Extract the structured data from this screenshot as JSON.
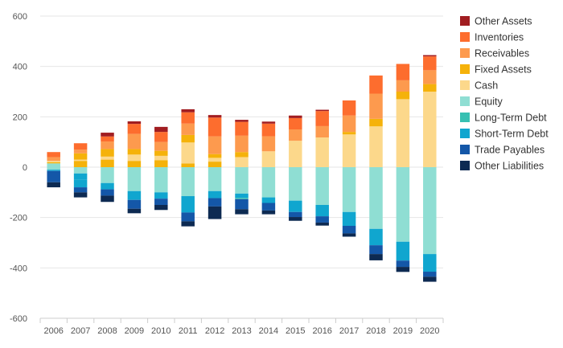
{
  "chart_data": {
    "type": "bar",
    "stacked": true,
    "categories": [
      "2006",
      "2007",
      "2008",
      "2009",
      "2010",
      "2011",
      "2012",
      "2013",
      "2014",
      "2015",
      "2016",
      "2017",
      "2018",
      "2019",
      "2020"
    ],
    "ylim": [
      -600,
      600
    ],
    "yticks": [
      600,
      400,
      200,
      0,
      -200,
      -400,
      -600
    ],
    "grid": true,
    "legend_position": "right",
    "positive_series": [
      {
        "name": "Equity",
        "color": "#8fded3",
        "values": [
          15,
          0,
          0,
          0,
          0,
          0,
          0,
          0,
          0,
          0,
          0,
          0,
          0,
          0,
          0
        ]
      },
      {
        "name": "Fixed Assets",
        "color": "#f5b20a",
        "values": [
          5,
          25,
          30,
          25,
          28,
          15,
          22,
          0,
          0,
          0,
          0,
          0,
          0,
          0,
          0
        ]
      },
      {
        "name": "Cash",
        "color": "#fcd88b",
        "values": [
          5,
          5,
          12,
          25,
          17,
          83,
          15,
          40,
          63,
          105,
          118,
          130,
          162,
          270,
          300
        ]
      },
      {
        "name": "Fixed Assets",
        "color": "#f5b20a",
        "values": [
          0,
          25,
          30,
          22,
          20,
          30,
          15,
          20,
          0,
          0,
          0,
          10,
          30,
          30,
          30
        ]
      },
      {
        "name": "Receivables",
        "color": "#fd9a4e",
        "values": [
          15,
          15,
          30,
          60,
          35,
          45,
          70,
          65,
          60,
          45,
          45,
          65,
          100,
          45,
          55
        ]
      },
      {
        "name": "Inventories",
        "color": "#fd6d2e",
        "values": [
          20,
          25,
          20,
          40,
          40,
          45,
          75,
          55,
          50,
          45,
          60,
          60,
          72,
          65,
          55
        ]
      },
      {
        "name": "Other Assets",
        "color": "#a11d21",
        "values": [
          0,
          0,
          15,
          10,
          20,
          12,
          10,
          8,
          8,
          10,
          5,
          0,
          0,
          0,
          5
        ]
      }
    ],
    "negative_series": [
      {
        "name": "Equity",
        "color": "#8fded3",
        "values": [
          10,
          25,
          63,
          95,
          100,
          115,
          95,
          105,
          120,
          133,
          150,
          178,
          245,
          296,
          345
        ]
      },
      {
        "name": "Short-Term Debt",
        "color": "#10a6cf",
        "values": [
          5,
          25,
          25,
          35,
          25,
          65,
          28,
          17,
          22,
          45,
          45,
          55,
          65,
          75,
          70
        ]
      },
      {
        "name": "Long-Term Debt",
        "color": "#37c0b2",
        "values": [
          0,
          0,
          0,
          0,
          0,
          0,
          0,
          5,
          0,
          0,
          0,
          0,
          0,
          0,
          0
        ]
      },
      {
        "name": "Short-Term Debt",
        "color": "#10a6cf",
        "values": [
          0,
          30,
          0,
          0,
          0,
          0,
          0,
          0,
          0,
          0,
          0,
          0,
          0,
          0,
          0
        ]
      },
      {
        "name": "Trade Payables",
        "color": "#1457a8",
        "values": [
          45,
          20,
          25,
          35,
          25,
          35,
          33,
          40,
          30,
          20,
          25,
          30,
          35,
          25,
          20
        ]
      },
      {
        "name": "Other Liabilities",
        "color": "#0d2a52",
        "values": [
          20,
          20,
          25,
          18,
          20,
          20,
          50,
          20,
          15,
          15,
          12,
          13,
          25,
          20,
          20
        ]
      }
    ],
    "legend": [
      {
        "name": "Other Assets",
        "color": "#a11d21"
      },
      {
        "name": "Inventories",
        "color": "#fd6d2e"
      },
      {
        "name": "Receivables",
        "color": "#fd9a4e"
      },
      {
        "name": "Fixed Assets",
        "color": "#f5b20a"
      },
      {
        "name": "Cash",
        "color": "#fcd88b"
      },
      {
        "name": "Equity",
        "color": "#8fded3"
      },
      {
        "name": "Long-Term Debt",
        "color": "#37c0b2"
      },
      {
        "name": "Short-Term Debt",
        "color": "#10a6cf"
      },
      {
        "name": "Trade Payables",
        "color": "#1457a8"
      },
      {
        "name": "Other Liabilities",
        "color": "#0d2a52"
      }
    ]
  }
}
